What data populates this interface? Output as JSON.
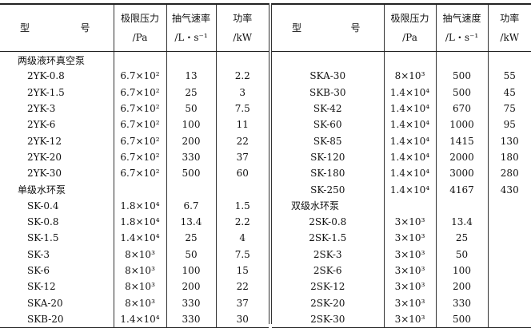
{
  "headers_left": {
    "model_a": "型",
    "model_b": "号",
    "pressure": "极限压力",
    "pressure_unit": "/Pa",
    "speed": "抽气速率",
    "speed_unit": "/L・s⁻¹",
    "power": "功率",
    "power_unit": "/kW"
  },
  "headers_right": {
    "model_a": "型",
    "model_b": "号",
    "pressure": "极限压力",
    "pressure_unit": "/Pa",
    "speed": "抽气速度",
    "speed_unit": "/L・s⁻¹",
    "power": "功率",
    "power_unit": "/kW"
  },
  "left_rows": [
    {
      "group": "两级液环真空泵"
    },
    {
      "model": "2YK-0.8",
      "pressure": "6.7×10²",
      "speed": "13",
      "power": "2.2"
    },
    {
      "model": "2YK-1.5",
      "pressure": "6.7×10²",
      "speed": "25",
      "power": "3"
    },
    {
      "model": "2YK-3",
      "pressure": "6.7×10²",
      "speed": "50",
      "power": "7.5"
    },
    {
      "model": "2YK-6",
      "pressure": "6.7×10²",
      "speed": "100",
      "power": "11"
    },
    {
      "model": "2YK-12",
      "pressure": "6.7×10²",
      "speed": "200",
      "power": "22"
    },
    {
      "model": "2YK-20",
      "pressure": "6.7×10²",
      "speed": "330",
      "power": "37"
    },
    {
      "model": "2YK-30",
      "pressure": "6.7×10²",
      "speed": "500",
      "power": "60"
    },
    {
      "group": "单级水环泵"
    },
    {
      "model": "SK-0.4",
      "pressure": "1.8×10⁴",
      "speed": "6.7",
      "power": "1.5"
    },
    {
      "model": "SK-0.8",
      "pressure": "1.8×10⁴",
      "speed": "13.4",
      "power": "2.2"
    },
    {
      "model": "SK-1.5",
      "pressure": "1.4×10⁴",
      "speed": "25",
      "power": "4"
    },
    {
      "model": "SK-3",
      "pressure": "8×10³",
      "speed": "50",
      "power": "7.5"
    },
    {
      "model": "SK-6",
      "pressure": "8×10³",
      "speed": "100",
      "power": "15"
    },
    {
      "model": "SK-12",
      "pressure": "8×10³",
      "speed": "200",
      "power": "22"
    },
    {
      "model": "SKA-20",
      "pressure": "8×10³",
      "speed": "330",
      "power": "37"
    },
    {
      "model": "SKB-20",
      "pressure": "1.4×10⁴",
      "speed": "330",
      "power": "30"
    }
  ],
  "right_rows": [
    {
      "model": "",
      "pressure": "",
      "speed": "",
      "power": ""
    },
    {
      "model": "SKA-30",
      "pressure": "8×10³",
      "speed": "500",
      "power": "55"
    },
    {
      "model": "SKB-30",
      "pressure": "1.4×10⁴",
      "speed": "500",
      "power": "45"
    },
    {
      "model": "SK-42",
      "pressure": "1.4×10⁴",
      "speed": "670",
      "power": "75"
    },
    {
      "model": "SK-60",
      "pressure": "1.4×10⁴",
      "speed": "1000",
      "power": "95"
    },
    {
      "model": "SK-85",
      "pressure": "1.4×10⁴",
      "speed": "1415",
      "power": "130"
    },
    {
      "model": "SK-120",
      "pressure": "1.4×10⁴",
      "speed": "2000",
      "power": "180"
    },
    {
      "model": "SK-180",
      "pressure": "1.4×10⁴",
      "speed": "3000",
      "power": "280"
    },
    {
      "model": "SK-250",
      "pressure": "1.4×10⁴",
      "speed": "4167",
      "power": "430"
    },
    {
      "group": "双级水环泵"
    },
    {
      "model": "2SK-0.8",
      "pressure": "3×10³",
      "speed": "13.4",
      "power": ""
    },
    {
      "model": "2SK-1.5",
      "pressure": "3×10³",
      "speed": "25",
      "power": ""
    },
    {
      "model": "2SK-3",
      "pressure": "3×10³",
      "speed": "50",
      "power": ""
    },
    {
      "model": "2SK-6",
      "pressure": "3×10³",
      "speed": "100",
      "power": ""
    },
    {
      "model": "2SK-12",
      "pressure": "3×10³",
      "speed": "200",
      "power": ""
    },
    {
      "model": "2SK-20",
      "pressure": "3×10³",
      "speed": "330",
      "power": ""
    },
    {
      "model": "2SK-30",
      "pressure": "3×10³",
      "speed": "500",
      "power": ""
    }
  ]
}
